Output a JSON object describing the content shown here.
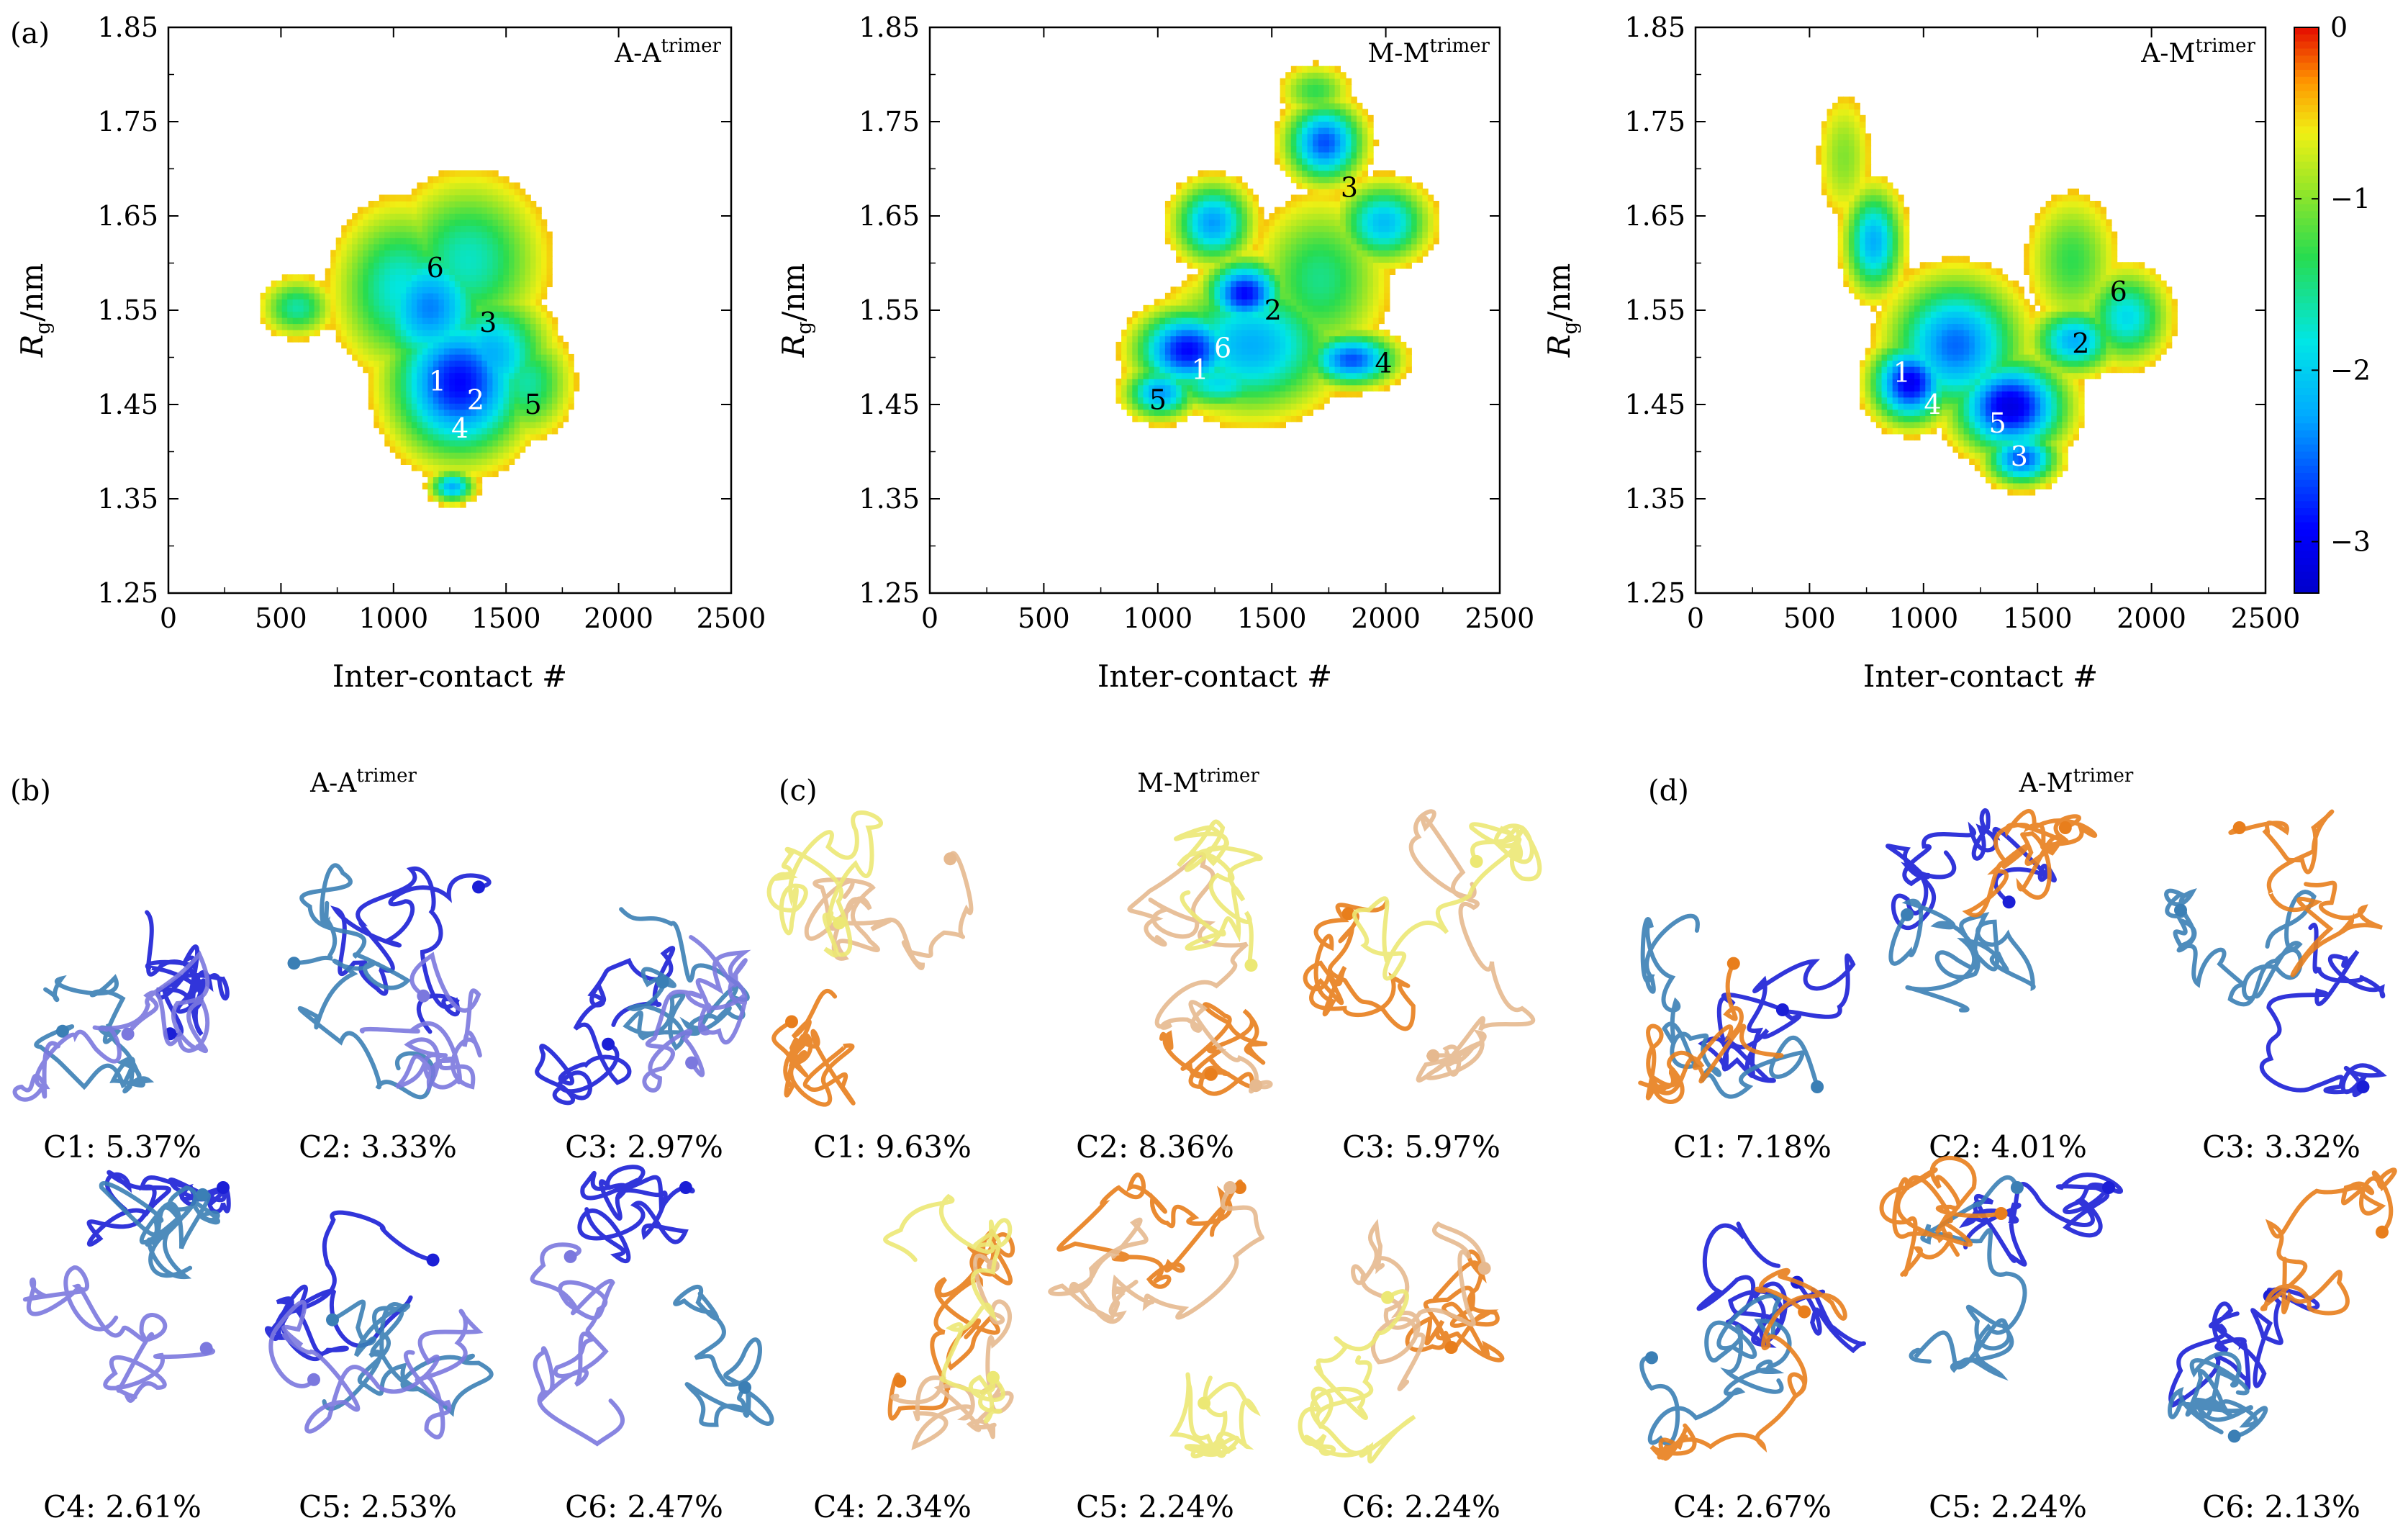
{
  "figure": {
    "labels": {
      "a": "(a)",
      "b": "(b)",
      "c": "(c)",
      "d": "(d)"
    }
  },
  "chart_data": [
    {
      "type": "heatmap",
      "title_base": "A-A",
      "title_sup": "trimer",
      "xlabel": "Inter-contact #",
      "ylabel_main": "R",
      "ylabel_sub": "g",
      "ylabel_unit": "/nm",
      "xlim": [
        0,
        2500
      ],
      "ylim": [
        1.25,
        1.85
      ],
      "xticks": [
        0,
        500,
        1000,
        1500,
        2000,
        2500
      ],
      "yticks": [
        "1.25",
        "1.35",
        "1.45",
        "1.55",
        "1.65",
        "1.75",
        "1.85"
      ],
      "blobs": [
        {
          "x": 1280,
          "y": 1.47,
          "sx": 210,
          "sy": 0.055,
          "v": -2.9
        },
        {
          "x": 1150,
          "y": 1.55,
          "sx": 180,
          "sy": 0.05,
          "v": -2.4
        },
        {
          "x": 1420,
          "y": 1.5,
          "sx": 180,
          "sy": 0.045,
          "v": -2.2
        },
        {
          "x": 1020,
          "y": 1.57,
          "sx": 200,
          "sy": 0.06,
          "v": -1.8
        },
        {
          "x": 1320,
          "y": 1.6,
          "sx": 230,
          "sy": 0.06,
          "v": -1.7
        },
        {
          "x": 1580,
          "y": 1.47,
          "sx": 140,
          "sy": 0.04,
          "v": -1.6
        },
        {
          "x": 560,
          "y": 1.55,
          "sx": 110,
          "sy": 0.022,
          "v": -1.6
        },
        {
          "x": 1250,
          "y": 1.36,
          "sx": 70,
          "sy": 0.012,
          "v": -2.2
        }
      ],
      "minima": [
        {
          "label": "1",
          "x": 1195,
          "y": 1.475,
          "light": true
        },
        {
          "label": "2",
          "x": 1365,
          "y": 1.455,
          "light": true
        },
        {
          "label": "3",
          "x": 1420,
          "y": 1.537,
          "light": false
        },
        {
          "label": "4",
          "x": 1295,
          "y": 1.425,
          "light": true
        },
        {
          "label": "5",
          "x": 1620,
          "y": 1.45,
          "light": false
        },
        {
          "label": "6",
          "x": 1185,
          "y": 1.595,
          "light": false
        }
      ]
    },
    {
      "type": "heatmap",
      "title_base": "M-M",
      "title_sup": "trimer",
      "xlabel": "Inter-contact #",
      "ylabel_main": "R",
      "ylabel_sub": "g",
      "ylabel_unit": "/nm",
      "xlim": [
        0,
        2500
      ],
      "ylim": [
        1.25,
        1.85
      ],
      "xticks": [
        0,
        500,
        1000,
        1500,
        2000,
        2500
      ],
      "yticks": [
        "1.25",
        "1.35",
        "1.45",
        "1.55",
        "1.65",
        "1.75",
        "1.85"
      ],
      "blobs": [
        {
          "x": 1120,
          "y": 1.505,
          "sx": 160,
          "sy": 0.03,
          "v": -2.9
        },
        {
          "x": 1370,
          "y": 1.565,
          "sx": 120,
          "sy": 0.025,
          "v": -2.9
        },
        {
          "x": 1840,
          "y": 1.495,
          "sx": 140,
          "sy": 0.02,
          "v": -2.6
        },
        {
          "x": 1230,
          "y": 1.64,
          "sx": 120,
          "sy": 0.03,
          "v": -2.3
        },
        {
          "x": 1720,
          "y": 1.725,
          "sx": 120,
          "sy": 0.03,
          "v": -2.6
        },
        {
          "x": 1980,
          "y": 1.64,
          "sx": 140,
          "sy": 0.03,
          "v": -2.1
        },
        {
          "x": 1400,
          "y": 1.51,
          "sx": 260,
          "sy": 0.05,
          "v": -2.2
        },
        {
          "x": 1000,
          "y": 1.46,
          "sx": 110,
          "sy": 0.02,
          "v": -2.3
        },
        {
          "x": 1260,
          "y": 1.47,
          "sx": 170,
          "sy": 0.02,
          "v": -1.9
        },
        {
          "x": 1700,
          "y": 1.58,
          "sx": 200,
          "sy": 0.06,
          "v": -1.5
        },
        {
          "x": 1680,
          "y": 1.78,
          "sx": 110,
          "sy": 0.02,
          "v": -1.3
        }
      ],
      "minima": [
        {
          "label": "1",
          "x": 1185,
          "y": 1.487,
          "light": true
        },
        {
          "label": "2",
          "x": 1505,
          "y": 1.55,
          "light": false
        },
        {
          "label": "3",
          "x": 1840,
          "y": 1.68,
          "light": false
        },
        {
          "label": "4",
          "x": 1990,
          "y": 1.494,
          "light": false
        },
        {
          "label": "5",
          "x": 1000,
          "y": 1.455,
          "light": false
        },
        {
          "label": "6",
          "x": 1285,
          "y": 1.51,
          "light": true
        }
      ]
    },
    {
      "type": "heatmap",
      "title_base": "A-M",
      "title_sup": "trimer",
      "xlabel": "Inter-contact #",
      "ylabel_main": "R",
      "ylabel_sub": "g",
      "ylabel_unit": "/nm",
      "xlim": [
        0,
        2500
      ],
      "ylim": [
        1.25,
        1.85
      ],
      "xticks": [
        0,
        500,
        1000,
        1500,
        2000,
        2500
      ],
      "yticks": [
        "1.25",
        "1.35",
        "1.45",
        "1.55",
        "1.65",
        "1.75",
        "1.85"
      ],
      "colorbar": {
        "min": -3.3,
        "max": 0,
        "ticks": [
          "0",
          "−1",
          "−2",
          "−3"
        ],
        "tick_values": [
          0,
          -1,
          -2,
          -3
        ]
      },
      "blobs": [
        {
          "x": 930,
          "y": 1.47,
          "sx": 120,
          "sy": 0.03,
          "v": -3.0
        },
        {
          "x": 1370,
          "y": 1.445,
          "sx": 170,
          "sy": 0.035,
          "v": -3.1
        },
        {
          "x": 1420,
          "y": 1.39,
          "sx": 110,
          "sy": 0.02,
          "v": -2.6
        },
        {
          "x": 1130,
          "y": 1.51,
          "sx": 200,
          "sy": 0.05,
          "v": -2.5
        },
        {
          "x": 1650,
          "y": 1.515,
          "sx": 130,
          "sy": 0.025,
          "v": -2.2
        },
        {
          "x": 1880,
          "y": 1.54,
          "sx": 130,
          "sy": 0.035,
          "v": -1.9
        },
        {
          "x": 770,
          "y": 1.62,
          "sx": 90,
          "sy": 0.04,
          "v": -2.2
        },
        {
          "x": 640,
          "y": 1.71,
          "sx": 90,
          "sy": 0.05,
          "v": -1.0
        },
        {
          "x": 1640,
          "y": 1.6,
          "sx": 140,
          "sy": 0.05,
          "v": -1.3
        }
      ],
      "minima": [
        {
          "label": "1",
          "x": 905,
          "y": 1.484,
          "light": true
        },
        {
          "label": "2",
          "x": 1690,
          "y": 1.515,
          "light": false
        },
        {
          "label": "3",
          "x": 1420,
          "y": 1.395,
          "light": true
        },
        {
          "label": "4",
          "x": 1040,
          "y": 1.45,
          "light": true
        },
        {
          "label": "5",
          "x": 1325,
          "y": 1.43,
          "light": true
        },
        {
          "label": "6",
          "x": 1855,
          "y": 1.57,
          "light": false
        }
      ]
    }
  ],
  "structures": [
    {
      "title_base": "A-A",
      "title_sup": "trimer",
      "colors": [
        "#1b1fd6",
        "#3b7fb5",
        "#7b78de"
      ],
      "clusters": [
        {
          "label": "C1: 5.37%",
          "value": 5.37
        },
        {
          "label": "C2: 3.33%",
          "value": 3.33
        },
        {
          "label": "C3: 2.97%",
          "value": 2.97
        },
        {
          "label": "C4: 2.61%",
          "value": 2.61
        },
        {
          "label": "C5: 2.53%",
          "value": 2.53
        },
        {
          "label": "C6: 2.47%",
          "value": 2.47
        }
      ]
    },
    {
      "title_base": "M-M",
      "title_sup": "trimer",
      "colors": [
        "#e87e1c",
        "#e6b98f",
        "#ece874"
      ],
      "clusters": [
        {
          "label": "C1: 9.63%",
          "value": 9.63
        },
        {
          "label": "C2: 8.36%",
          "value": 8.36
        },
        {
          "label": "C3: 5.97%",
          "value": 5.97
        },
        {
          "label": "C4: 2.34%",
          "value": 2.34
        },
        {
          "label": "C5: 2.24%",
          "value": 2.24
        },
        {
          "label": "C6: 2.24%",
          "value": 2.24
        }
      ]
    },
    {
      "title_base": "A-M",
      "title_sup": "trimer",
      "colors": [
        "#1b1fd6",
        "#3b7fb5",
        "#e87e1c"
      ],
      "clusters": [
        {
          "label": "C1: 7.18%",
          "value": 7.18
        },
        {
          "label": "C2: 4.01%",
          "value": 4.01
        },
        {
          "label": "C3: 3.32%",
          "value": 3.32
        },
        {
          "label": "C4: 2.67%",
          "value": 2.67
        },
        {
          "label": "C5: 2.24%",
          "value": 2.24
        },
        {
          "label": "C6: 2.13%",
          "value": 2.13
        }
      ]
    }
  ]
}
